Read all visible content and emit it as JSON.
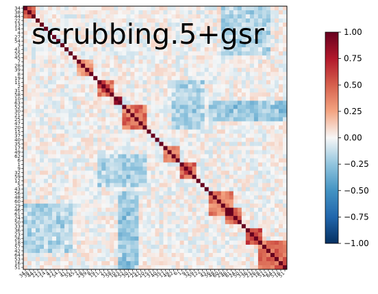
{
  "chart_data": {
    "type": "heatmap",
    "title": "scrubbing.5+gsr",
    "matrix_size": 64,
    "row_tick_labels": [
      "34",
      "38",
      "44",
      "22",
      "13",
      "14",
      "4",
      "27",
      "54",
      "3",
      "41",
      "55",
      "45",
      "7",
      "28",
      "39",
      "8",
      "19",
      "11",
      "2",
      "31",
      "58",
      "10",
      "63",
      "52",
      "30",
      "21",
      "25",
      "47",
      "20",
      "15",
      "37",
      "40",
      "35",
      "17",
      "49",
      "62",
      "6",
      "1",
      "9",
      "32",
      "59",
      "12",
      "5",
      "43",
      "56",
      "48",
      "60",
      "29",
      "46",
      "61",
      "24",
      "50",
      "33",
      "36",
      "23",
      "26",
      "18",
      "57",
      "42",
      "64",
      "53",
      "16",
      "51"
    ],
    "col_tick_labels": [
      "34",
      "38",
      "44",
      "22",
      "13",
      "14",
      "4",
      "27",
      "54",
      "3",
      "41",
      "55",
      "45",
      "7",
      "28",
      "39",
      "8",
      "19",
      "11",
      "2",
      "31",
      "58",
      "10",
      "63",
      "52",
      "30",
      "21",
      "25",
      "47",
      "20",
      "15",
      "37",
      "40",
      "35",
      "17",
      "49",
      "62",
      "6",
      "1",
      "9",
      "32",
      "59",
      "12",
      "5",
      "43",
      "56",
      "48",
      "60",
      "29",
      "46",
      "61",
      "24",
      "50",
      "33",
      "36",
      "23",
      "26",
      "18",
      "57",
      "42",
      "64",
      "53",
      "16",
      "51"
    ],
    "visible_row_labels": [
      "34",
      "51"
    ],
    "colorbar": {
      "colormap": "RdBu_r",
      "vmin": -1.0,
      "vmax": 1.0,
      "ticks": [
        "1.00",
        "0.75",
        "0.50",
        "0.25",
        "0.00",
        "−0.25",
        "−0.50",
        "−0.75",
        "−1.00"
      ]
    },
    "diagonal_value": 1.0,
    "blocks": [
      {
        "start": 0,
        "end": 3,
        "strength": 0.45
      },
      {
        "start": 13,
        "end": 17,
        "strength": 0.35
      },
      {
        "start": 18,
        "end": 22,
        "strength": 0.5
      },
      {
        "start": 22,
        "end": 24,
        "strength": 0.8
      },
      {
        "start": 24,
        "end": 30,
        "strength": 0.45
      },
      {
        "start": 34,
        "end": 38,
        "strength": 0.4
      },
      {
        "start": 38,
        "end": 42,
        "strength": 0.55
      },
      {
        "start": 45,
        "end": 51,
        "strength": 0.45
      },
      {
        "start": 49,
        "end": 53,
        "strength": 0.5
      },
      {
        "start": 54,
        "end": 58,
        "strength": 0.6
      },
      {
        "start": 57,
        "end": 64,
        "strength": 0.5
      }
    ],
    "negative_bands": [
      {
        "rows": [
          23,
          28
        ],
        "cols": [
          45,
          64
        ],
        "strength": -0.25
      },
      {
        "rows": [
          36,
          44
        ],
        "cols": [
          18,
          30
        ],
        "strength": -0.2
      },
      {
        "rows": [
          48,
          60
        ],
        "cols": [
          0,
          12
        ],
        "strength": -0.18
      }
    ],
    "grid": false
  }
}
